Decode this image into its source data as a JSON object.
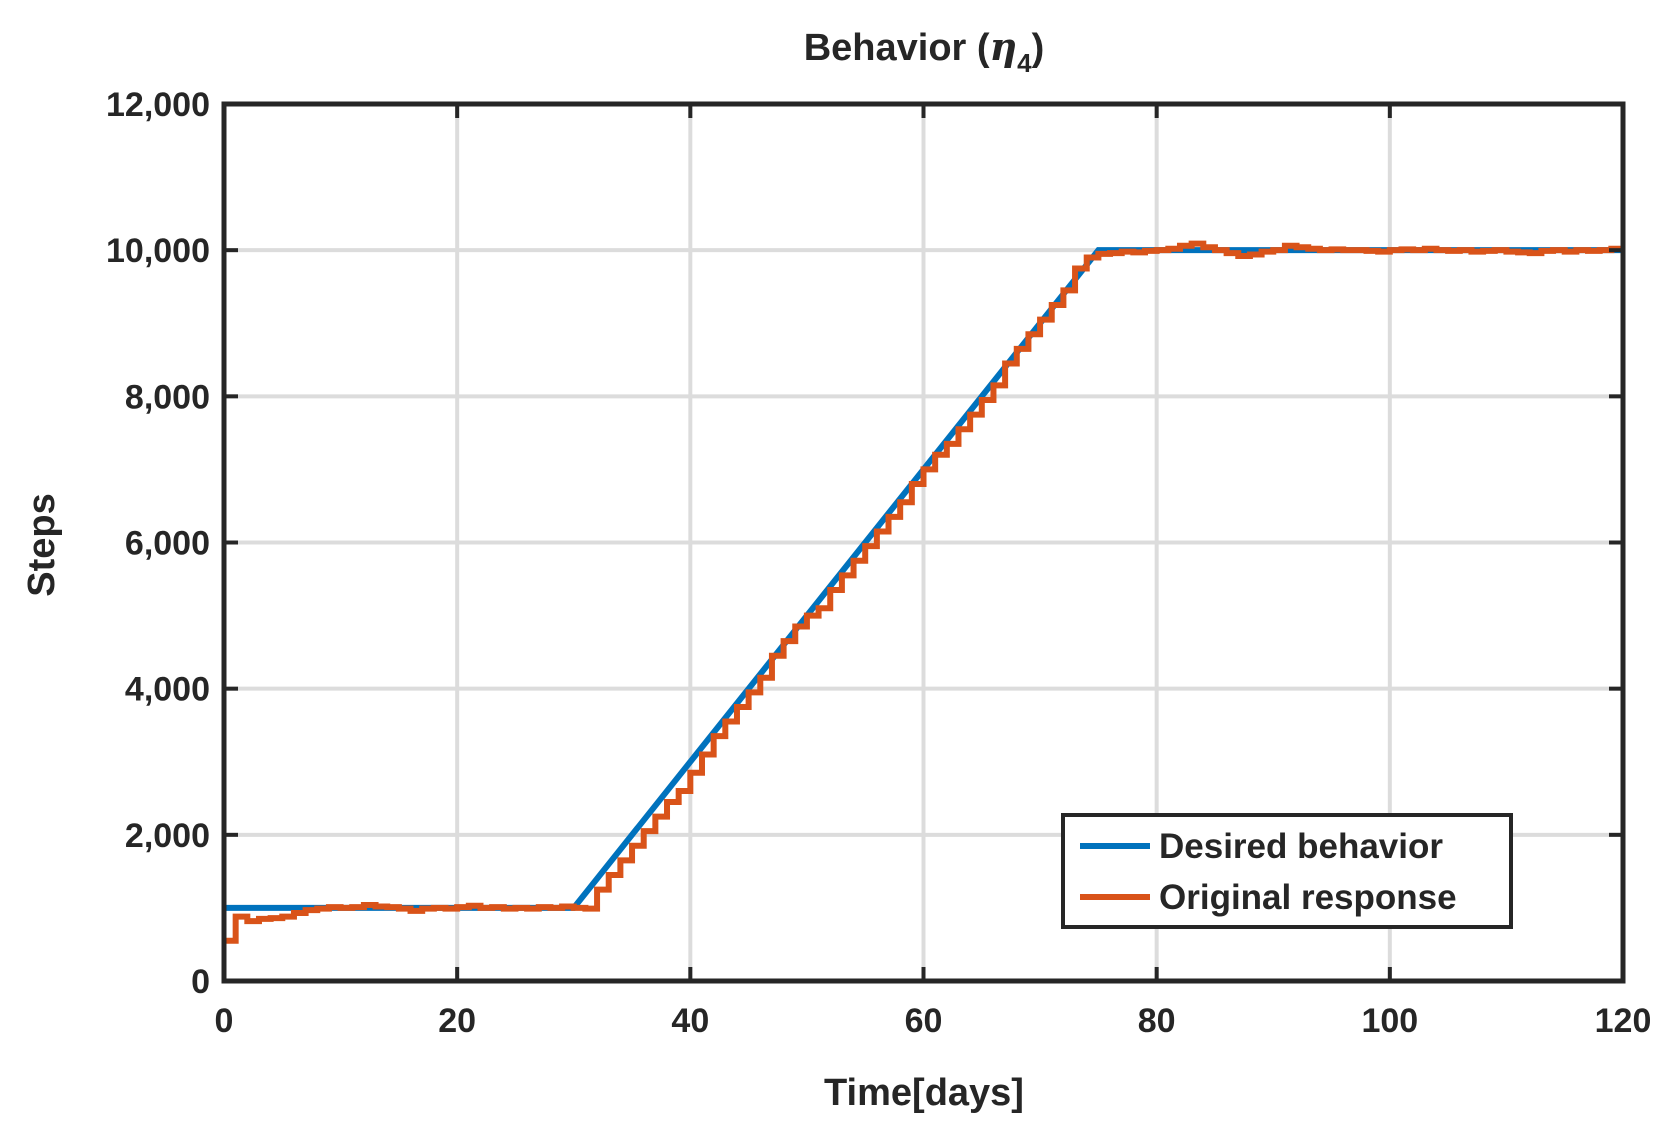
{
  "chart_data": {
    "type": "line",
    "title_prefix": "Behavior (",
    "title_symbol": "η",
    "title_subscript": "4",
    "title_suffix": ")",
    "xlabel": "Time[days]",
    "ylabel": "Steps",
    "xlim": [
      0,
      120
    ],
    "ylim": [
      0,
      12000
    ],
    "xticks": [
      0,
      20,
      40,
      60,
      80,
      100,
      120
    ],
    "xtick_labels": [
      "0",
      "20",
      "40",
      "60",
      "80",
      "100",
      "120"
    ],
    "yticks": [
      0,
      2000,
      4000,
      6000,
      8000,
      10000,
      12000
    ],
    "ytick_labels": [
      "0",
      "2,000",
      "4,000",
      "6,000",
      "8,000",
      "10,000",
      "12,000"
    ],
    "grid": true,
    "legend_position": "bottom-right",
    "series": [
      {
        "name": "Desired behavior",
        "color": "#0072BD",
        "style": "line",
        "x": [
          0,
          30,
          75,
          120
        ],
        "y": [
          1000,
          1000,
          10000,
          10000
        ]
      },
      {
        "name": "Original response",
        "color": "#D95319",
        "style": "stairs",
        "x": [
          0,
          1,
          2,
          3,
          4,
          5,
          6,
          7,
          8,
          9,
          10,
          11,
          12,
          13,
          14,
          15,
          16,
          17,
          18,
          19,
          20,
          21,
          22,
          23,
          24,
          25,
          26,
          27,
          28,
          29,
          30,
          31,
          32,
          33,
          34,
          35,
          36,
          37,
          38,
          39,
          40,
          41,
          42,
          43,
          44,
          45,
          46,
          47,
          48,
          49,
          50,
          51,
          52,
          53,
          54,
          55,
          56,
          57,
          58,
          59,
          60,
          61,
          62,
          63,
          64,
          65,
          66,
          67,
          68,
          69,
          70,
          71,
          72,
          73,
          74,
          75,
          76,
          77,
          78,
          79,
          80,
          81,
          82,
          83,
          84,
          85,
          86,
          87,
          88,
          89,
          90,
          91,
          92,
          93,
          94,
          95,
          96,
          97,
          98,
          99,
          100,
          101,
          102,
          103,
          104,
          105,
          106,
          107,
          108,
          109,
          110,
          111,
          112,
          113,
          114,
          115,
          116,
          117,
          118,
          119,
          120
        ],
        "y": [
          550,
          880,
          820,
          850,
          860,
          880,
          930,
          970,
          990,
          1010,
          1000,
          1010,
          1040,
          1020,
          1010,
          990,
          960,
          990,
          1000,
          990,
          1010,
          1030,
          1000,
          1010,
          990,
          1000,
          990,
          1010,
          1000,
          1020,
          1000,
          990,
          1250,
          1450,
          1650,
          1850,
          2050,
          2250,
          2450,
          2600,
          2850,
          3100,
          3350,
          3550,
          3750,
          3950,
          4150,
          4450,
          4650,
          4850,
          5000,
          5100,
          5350,
          5550,
          5750,
          5950,
          6150,
          6350,
          6550,
          6800,
          7000,
          7200,
          7350,
          7550,
          7750,
          7950,
          8150,
          8450,
          8650,
          8850,
          9050,
          9250,
          9450,
          9750,
          9900,
          9950,
          9960,
          9980,
          9970,
          9990,
          10000,
          10020,
          10060,
          10090,
          10040,
          10000,
          9960,
          9920,
          9940,
          9980,
          10000,
          10060,
          10040,
          10020,
          10000,
          10010,
          10000,
          10000,
          9990,
          9980,
          10000,
          10010,
          10000,
          10020,
          10000,
          9990,
          10000,
          9980,
          9990,
          10000,
          9980,
          9970,
          9960,
          9990,
          10000,
          9980,
          10000,
          9990,
          10000,
          10020,
          10020
        ]
      }
    ]
  }
}
